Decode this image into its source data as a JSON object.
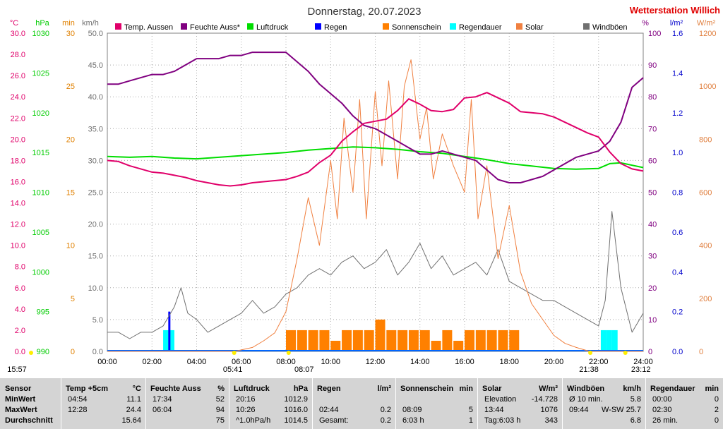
{
  "header": {
    "title": "Donnerstag, 20.07.2023",
    "station": "Wetterstation Willich"
  },
  "colors": {
    "temp": "#e0006a",
    "humidity": "#800080",
    "pressure": "#00dd00",
    "rain": "#0000ff",
    "sunshine": "#ff8000",
    "rain_duration": "#00ffff",
    "solar": "#f08040",
    "gust": "#707070"
  },
  "axes_left": [
    {
      "unit": "°C",
      "color": "#e0006a",
      "ticks": [
        "30.0",
        "28.0",
        "26.0",
        "24.0",
        "22.0",
        "20.0",
        "18.0",
        "16.0",
        "14.0",
        "12.0",
        "10.0",
        "8.0",
        "6.0",
        "4.0",
        "2.0",
        "0.0"
      ],
      "range": [
        0,
        30
      ]
    },
    {
      "unit": "hPa",
      "color": "#00cc00",
      "ticks": [
        "1030",
        "1025",
        "1020",
        "1015",
        "1010",
        "1005",
        "1000",
        "995",
        "990"
      ],
      "range": [
        990,
        1030
      ]
    },
    {
      "unit": "min",
      "color": "#e08000",
      "ticks": [
        "30",
        "25",
        "20",
        "15",
        "10",
        "5",
        "0"
      ],
      "range": [
        0,
        30
      ]
    },
    {
      "unit": "km/h",
      "color": "#707070",
      "ticks": [
        "50.0",
        "45.0",
        "40.0",
        "35.0",
        "30.0",
        "25.0",
        "20.0",
        "15.0",
        "10.0",
        "5.0",
        "0.0"
      ],
      "range": [
        0,
        50
      ]
    }
  ],
  "axes_right": [
    {
      "unit": "%",
      "color": "#800080",
      "ticks": [
        "100",
        "90",
        "80",
        "70",
        "60",
        "50",
        "40",
        "30",
        "20",
        "10",
        "0"
      ],
      "range": [
        0,
        100
      ]
    },
    {
      "unit": "l/m²",
      "color": "#0000cc",
      "ticks": [
        "1.6",
        "1.4",
        "1.2",
        "1.0",
        "0.8",
        "0.6",
        "0.4",
        "0.2",
        "0.0"
      ],
      "range": [
        0,
        1.6
      ]
    },
    {
      "unit": "W/m²",
      "color": "#e08040",
      "ticks": [
        "1200",
        "1000",
        "800",
        "600",
        "400",
        "200",
        "0"
      ],
      "range": [
        0,
        1200
      ]
    }
  ],
  "legend": [
    {
      "label": "Temp. Aussen",
      "color": "#e0006a"
    },
    {
      "label": "Feuchte Auss*",
      "color": "#800080"
    },
    {
      "label": "Luftdruck",
      "color": "#00dd00"
    },
    {
      "label": "Regen",
      "color": "#0000ff"
    },
    {
      "label": "Sonnenschein",
      "color": "#ff8000"
    },
    {
      "label": "Regendauer",
      "color": "#00ffff"
    },
    {
      "label": "Solar",
      "color": "#f08040"
    },
    {
      "label": "Windböen",
      "color": "#707070"
    }
  ],
  "x_ticks": [
    "00:00",
    "02:00",
    "04:00",
    "06:00",
    "08:00",
    "10:00",
    "12:00",
    "14:00",
    "16:00",
    "18:00",
    "20:00",
    "22:00",
    "24:00"
  ],
  "time_markers": [
    {
      "label": "15:57",
      "hour": 0
    },
    {
      "label": "05:41",
      "hour": 5.68
    },
    {
      "label": "08:07",
      "hour": 8.12
    },
    {
      "label": "21:38",
      "hour": 21.63
    },
    {
      "label": "23:12",
      "hour": 23.2
    }
  ],
  "chart_data": {
    "type": "line",
    "x_unit": "hour",
    "series": [
      {
        "name": "Temp. Aussen",
        "unit": "°C",
        "axis": "°C",
        "x": [
          0,
          0.5,
          1,
          1.5,
          2,
          2.5,
          3,
          3.5,
          4,
          4.5,
          5,
          5.5,
          6,
          6.5,
          7,
          7.5,
          8,
          8.5,
          9,
          9.5,
          10,
          10.5,
          11,
          11.5,
          12,
          12.5,
          13,
          13.5,
          14,
          14.5,
          15,
          15.5,
          16,
          16.5,
          17,
          17.5,
          18,
          18.5,
          19,
          19.5,
          20,
          20.5,
          21,
          21.5,
          22,
          22.5,
          23,
          23.5,
          24
        ],
        "y": [
          18.0,
          17.9,
          17.5,
          17.2,
          16.9,
          16.8,
          16.6,
          16.4,
          16.1,
          15.9,
          15.7,
          15.6,
          15.7,
          15.9,
          16.0,
          16.1,
          16.2,
          16.5,
          16.9,
          17.8,
          18.5,
          19.8,
          20.7,
          21.5,
          21.7,
          21.9,
          22.7,
          23.8,
          23.3,
          22.7,
          22.6,
          22.8,
          23.9,
          24.0,
          24.4,
          23.9,
          23.4,
          22.6,
          22.5,
          22.4,
          22.1,
          21.6,
          21.1,
          20.6,
          20.2,
          18.8,
          17.7,
          17.2,
          17.0
        ]
      },
      {
        "name": "Feuchte Auss*",
        "unit": "%",
        "axis": "%",
        "x": [
          0,
          0.5,
          1,
          1.5,
          2,
          2.5,
          3,
          3.5,
          4,
          4.5,
          5,
          5.5,
          6,
          6.5,
          7,
          7.5,
          8,
          8.5,
          9,
          9.5,
          10,
          10.5,
          11,
          11.5,
          12,
          12.5,
          13,
          13.5,
          14,
          14.5,
          15,
          15.5,
          16,
          16.5,
          17,
          17.5,
          18,
          18.5,
          19,
          19.5,
          20,
          20.5,
          21,
          21.5,
          22,
          22.5,
          23,
          23.5,
          24
        ],
        "y": [
          84,
          84,
          85,
          86,
          87,
          87,
          88,
          90,
          92,
          92,
          92,
          93,
          93,
          94,
          94,
          94,
          94,
          91,
          88,
          84,
          81,
          78,
          74,
          71,
          70,
          68,
          66,
          64,
          62,
          62,
          63,
          62,
          61,
          60,
          57,
          54,
          53,
          53,
          54,
          55,
          57,
          59,
          61,
          62,
          63,
          66,
          72,
          83,
          86
        ]
      },
      {
        "name": "Luftdruck",
        "unit": "hPa",
        "axis": "hPa",
        "x": [
          0,
          1,
          2,
          3,
          4,
          5,
          6,
          7,
          8,
          9,
          10,
          11,
          12,
          13,
          14,
          15,
          16,
          17,
          18,
          19,
          20,
          21,
          22,
          22.5,
          23,
          24
        ],
        "y": [
          1014.5,
          1014.4,
          1014.5,
          1014.3,
          1014.2,
          1014.4,
          1014.6,
          1014.8,
          1015.0,
          1015.3,
          1015.5,
          1015.7,
          1015.6,
          1015.4,
          1015.1,
          1014.9,
          1014.5,
          1014.1,
          1013.6,
          1013.3,
          1013.0,
          1012.9,
          1013.0,
          1013.6,
          1013.7,
          1013.1
        ]
      },
      {
        "name": "Windböen",
        "unit": "km/h",
        "axis": "km/h",
        "x": [
          0,
          0.5,
          1,
          1.5,
          2,
          2.5,
          3,
          3.3,
          3.6,
          4,
          4.5,
          5,
          5.5,
          6,
          6.5,
          7,
          7.5,
          8,
          8.5,
          9,
          9.5,
          10,
          10.5,
          11,
          11.5,
          12,
          12.5,
          13,
          13.5,
          14,
          14.5,
          15,
          15.5,
          16,
          16.5,
          17,
          17.5,
          18,
          18.5,
          19,
          19.5,
          20,
          20.5,
          21,
          21.5,
          22,
          22.3,
          22.6,
          23,
          23.5,
          24
        ],
        "y": [
          3,
          3,
          2,
          3,
          3,
          4,
          7,
          10,
          6,
          5,
          3,
          4,
          5,
          6,
          8,
          6,
          7,
          9,
          10,
          12,
          13,
          12,
          14,
          15,
          13,
          14,
          16,
          12,
          14,
          17,
          13,
          15,
          12,
          13,
          14,
          12,
          16,
          11,
          10,
          9,
          8,
          8,
          7,
          6,
          5,
          4,
          8,
          22,
          10,
          3,
          6
        ]
      },
      {
        "name": "Solar",
        "unit": "W/m²",
        "axis": "W/m²",
        "x": [
          0,
          5.7,
          6.5,
          7,
          7.5,
          8,
          8.5,
          9,
          9.5,
          10,
          10.3,
          10.6,
          11,
          11.3,
          11.6,
          12,
          12.3,
          12.6,
          13,
          13.3,
          13.6,
          14,
          14.3,
          14.6,
          15,
          15.5,
          16,
          16.3,
          16.6,
          17,
          17.5,
          18,
          18.5,
          19,
          19.5,
          20,
          20.5,
          21,
          21.6,
          24
        ],
        "y": [
          0,
          0,
          15,
          40,
          70,
          150,
          350,
          580,
          400,
          720,
          500,
          880,
          600,
          950,
          500,
          980,
          700,
          1020,
          650,
          1000,
          1100,
          800,
          920,
          650,
          820,
          700,
          600,
          950,
          500,
          700,
          350,
          550,
          300,
          180,
          120,
          60,
          30,
          15,
          0,
          0
        ]
      },
      {
        "name": "Sonnenschein",
        "unit": "min",
        "axis": "min",
        "x": [
          8.0,
          8.5,
          9.0,
          9.5,
          10.0,
          10.5,
          11.0,
          11.5,
          12.0,
          12.5,
          13.0,
          13.5,
          14.0,
          14.5,
          15.0,
          15.5,
          16.0,
          16.5,
          17.0,
          17.5,
          18.0
        ],
        "y": [
          2,
          2,
          2,
          2,
          1,
          2,
          2,
          2,
          3,
          2,
          2,
          2,
          2,
          1,
          2,
          1,
          2,
          2,
          2,
          2,
          2
        ]
      },
      {
        "name": "Regendauer",
        "unit": "min",
        "axis": "min",
        "x": [
          2.5,
          2.75,
          22.1,
          22.35,
          22.6
        ],
        "y": [
          2,
          2,
          2,
          2,
          2
        ]
      },
      {
        "name": "Regen",
        "unit": "l/m²",
        "axis": "l/m²",
        "x": [
          2.73
        ],
        "y": [
          0.2
        ]
      }
    ]
  },
  "stats": {
    "columns": [
      {
        "title": "Sensor",
        "unit": "",
        "rows": [
          "MinWert",
          "MaxWert",
          "Durchschnitt"
        ],
        "times": [
          "",
          "",
          ""
        ],
        "values": [
          "",
          "",
          ""
        ]
      },
      {
        "title": "Temp +5cm",
        "unit": "°C",
        "times": [
          "04:54",
          "12:28",
          ""
        ],
        "values": [
          "11.1",
          "24.4",
          "15.64"
        ]
      },
      {
        "title": "Feuchte Auss",
        "unit": "%",
        "times": [
          "17:34",
          "06:04",
          ""
        ],
        "values": [
          "52",
          "94",
          "75"
        ]
      },
      {
        "title": "Luftdruck",
        "unit": "hPa",
        "times": [
          "20:16",
          "10:26",
          "^1.0hPa/h"
        ],
        "values": [
          "1012.9",
          "1016.0",
          "1014.5"
        ]
      },
      {
        "title": "Regen",
        "unit": "l/m²",
        "times": [
          "",
          "02:44",
          "Gesamt:"
        ],
        "values": [
          "",
          "0.2",
          "0.2"
        ]
      },
      {
        "title": "Sonnenschein",
        "unit": "min",
        "times": [
          "",
          "08:09",
          "6:03 h"
        ],
        "values": [
          "",
          "5",
          "1"
        ]
      },
      {
        "title": "Solar",
        "unit": "W/m²",
        "times": [
          "Elevation",
          "13:44",
          "Tag:6:03 h"
        ],
        "values": [
          "-14.728",
          "1076",
          "343"
        ]
      },
      {
        "title": "Windböen",
        "unit": "km/h",
        "times": [
          "Ø 10 min.",
          "09:44",
          ""
        ],
        "values": [
          "5.8",
          "W-SW 25.7",
          "6.8"
        ]
      },
      {
        "title": "Regendauer",
        "unit": "min",
        "times": [
          "00:00",
          "02:30",
          "26 min."
        ],
        "values": [
          "0",
          "2",
          "0"
        ]
      }
    ]
  }
}
